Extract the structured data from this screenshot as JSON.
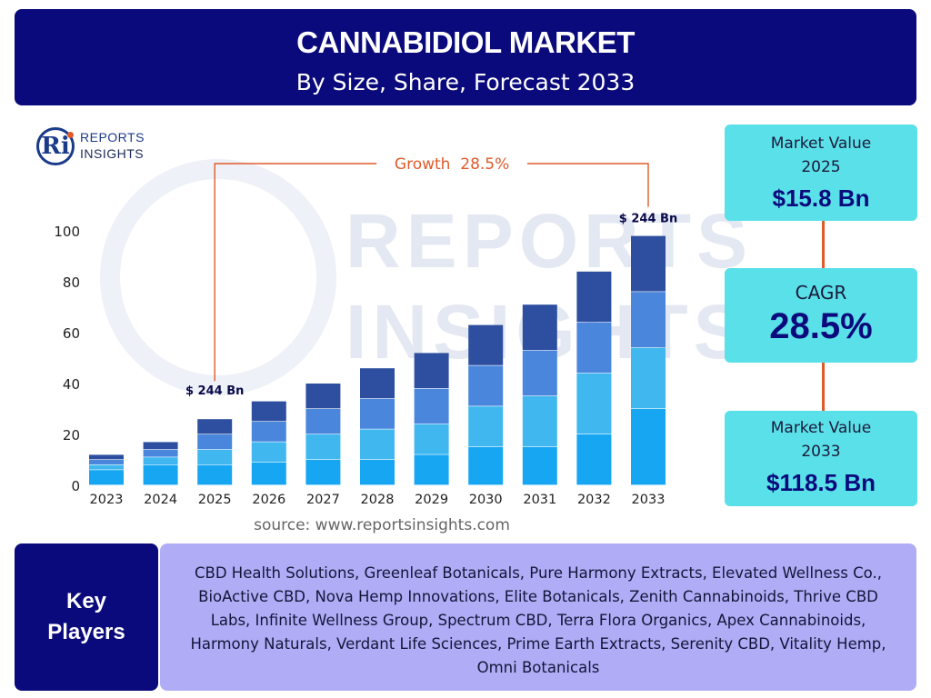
{
  "header": {
    "title": "CANNABIDIOL MARKET",
    "subtitle": "By Size, Share, Forecast 2033"
  },
  "logo": {
    "mark": "Ri",
    "line1": "REPORTS",
    "line2": "INSIGHTS"
  },
  "watermark": {
    "line1": "REPORTS",
    "line2": "INSIGHTS"
  },
  "chart_data": {
    "type": "bar",
    "stacked": true,
    "categories": [
      "2023",
      "2024",
      "2025",
      "2026",
      "2027",
      "2028",
      "2029",
      "2030",
      "2031",
      "2032",
      "2033"
    ],
    "segments": [
      [
        6,
        2,
        2,
        2
      ],
      [
        8,
        3,
        3,
        3
      ],
      [
        8,
        6,
        6,
        6
      ],
      [
        9,
        8,
        8,
        8
      ],
      [
        10,
        10,
        10,
        10
      ],
      [
        10,
        12,
        12,
        12
      ],
      [
        12,
        12,
        14,
        14
      ],
      [
        15,
        16,
        16,
        16
      ],
      [
        15,
        20,
        18,
        18
      ],
      [
        20,
        24,
        20,
        20
      ],
      [
        30,
        24,
        22,
        22
      ]
    ],
    "segment_colors": [
      "#17a6f2",
      "#40b8ef",
      "#4a86dc",
      "#2e4fa0"
    ],
    "yticks": [
      0,
      20,
      40,
      60,
      80,
      100
    ],
    "ylim": [
      0,
      100
    ],
    "annotations": {
      "start_label": "$ 244 Bn",
      "end_label": "$ 244 Bn",
      "growth_label": "Growth  28.5%",
      "growth_color": "#e05a2a"
    }
  },
  "source": "source: www.reportsinsights.com",
  "market_value_2025": {
    "label_line1": "Market Value",
    "label_line2": "2025",
    "value": "$15.8 Bn"
  },
  "cagr": {
    "label": "CAGR",
    "value": "28.5%"
  },
  "market_value_2033": {
    "label_line1": "Market Value",
    "label_line2": "2033",
    "value": "$118.5 Bn"
  },
  "key_players": {
    "label_line1": "Key",
    "label_line2": "Players",
    "text": "CBD Health Solutions, Greenleaf Botanicals, Pure Harmony Extracts, Elevated Wellness Co., BioActive CBD, Nova Hemp Innovations, Elite Botanicals, Zenith Cannabinoids, Thrive CBD Labs, Infinite Wellness Group, Spectrum CBD, Terra Flora Organics, Apex Cannabinoids, Harmony Naturals, Verdant Life Sciences, Prime Earth Extracts, Serenity CBD, Vitality Hemp, Omni Botanicals"
  }
}
